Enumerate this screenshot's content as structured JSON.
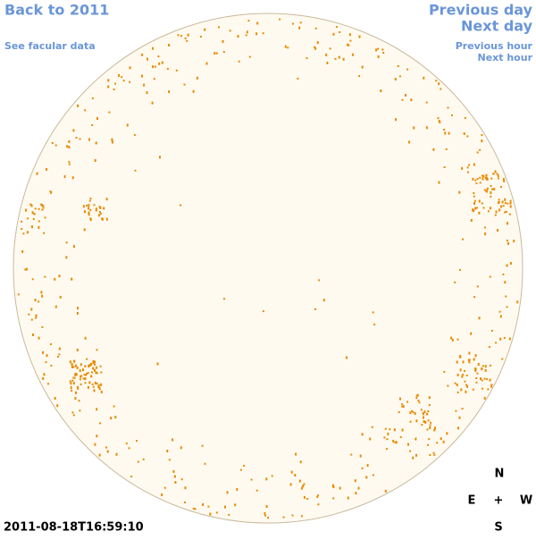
{
  "nav": {
    "back": "Back to 2011",
    "facular": "See facular data",
    "previous_day": "Previous day",
    "next_day": "Next day",
    "previous_hour": "Previous hour",
    "next_hour": "Next hour"
  },
  "timestamp": "2011-08-18T16:59:10",
  "compass": {
    "north": "N",
    "east": "E",
    "center": "+",
    "west": "W",
    "south": "S"
  }
}
